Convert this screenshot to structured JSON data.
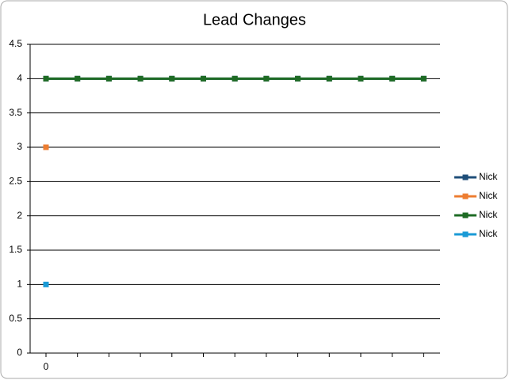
{
  "chart_data": {
    "type": "line",
    "title": "Lead Changes",
    "categories": [
      "0",
      null,
      null,
      null,
      null,
      null,
      null,
      null,
      null,
      null,
      null,
      null,
      null
    ],
    "series": [
      {
        "name": "Nick",
        "color": "#1f4e79",
        "values": [
          4,
          4,
          4,
          4,
          4,
          4,
          4,
          4,
          4,
          4,
          4,
          4,
          4
        ]
      },
      {
        "name": "Nick",
        "color": "#ed7d31",
        "values": [
          3,
          null,
          null,
          null,
          null,
          null,
          null,
          null,
          null,
          null,
          null,
          null,
          null
        ]
      },
      {
        "name": "Nick",
        "color": "#1e6b24",
        "values": [
          4,
          4,
          4,
          4,
          4,
          4,
          4,
          4,
          4,
          4,
          4,
          4,
          4
        ]
      },
      {
        "name": "Nick",
        "color": "#1a9ad6",
        "values": [
          1,
          null,
          null,
          null,
          null,
          null,
          null,
          null,
          null,
          null,
          null,
          null,
          null
        ]
      }
    ],
    "ylim": [
      0,
      4.5
    ],
    "yticks": [
      0,
      0.5,
      1,
      1.5,
      2,
      2.5,
      3,
      3.5,
      4,
      4.5
    ],
    "grid": true,
    "legend": "right"
  }
}
